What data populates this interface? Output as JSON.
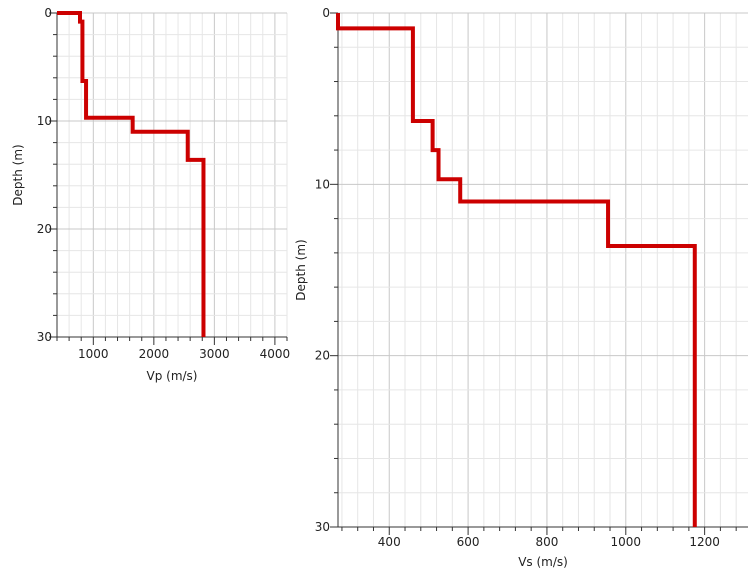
{
  "chart_data": [
    {
      "type": "line",
      "title": "",
      "xlabel": "Vp (m/s)",
      "ylabel": "Depth (m)",
      "xlim": [
        400,
        4200
      ],
      "ylim": [
        0,
        30
      ],
      "y_inverted": true,
      "grid": true,
      "xticks": [
        1000,
        2000,
        3000,
        4000
      ],
      "yticks": [
        0,
        10,
        20,
        30
      ],
      "series": [
        {
          "color": "#cc0000",
          "step": "vertical-horizontal",
          "x": [
            400,
            780,
            780,
            820,
            820,
            880,
            880,
            1650,
            1650,
            2560,
            2560,
            2820,
            2820
          ],
          "y": [
            0,
            0,
            0.8,
            0.8,
            6.3,
            6.3,
            9.7,
            9.7,
            11.0,
            11.0,
            13.6,
            13.6,
            30
          ]
        }
      ]
    },
    {
      "type": "line",
      "title": "",
      "xlabel": "Vs (m/s)",
      "ylabel": "Depth (m)",
      "xlim": [
        270,
        1310
      ],
      "ylim": [
        0,
        30
      ],
      "y_inverted": true,
      "grid": true,
      "xticks": [
        400,
        600,
        800,
        1000,
        1200
      ],
      "yticks": [
        0,
        10,
        20,
        30
      ],
      "series": [
        {
          "color": "#cc0000",
          "step": "vertical-horizontal",
          "x": [
            270,
            270,
            460,
            460,
            510,
            510,
            525,
            525,
            580,
            580,
            955,
            955,
            1175,
            1175
          ],
          "y": [
            0,
            0.9,
            0.9,
            6.3,
            6.3,
            8.0,
            8.0,
            9.7,
            9.7,
            11.0,
            11.0,
            13.6,
            13.6,
            30
          ]
        }
      ]
    }
  ]
}
